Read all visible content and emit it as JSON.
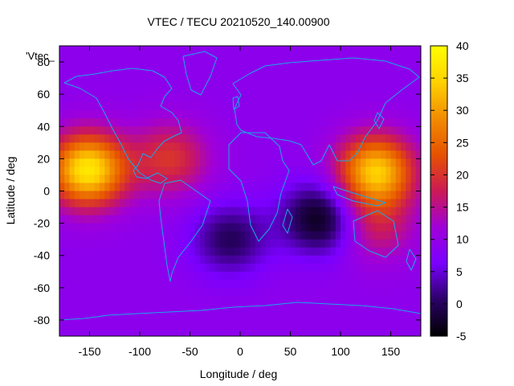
{
  "chart_data": {
    "type": "heatmap",
    "title": "VTEC / TECU 20210520_140.00900",
    "xlabel": "Longitude / deg",
    "ylabel": "Latitude / deg",
    "xlim": [
      -180,
      180
    ],
    "ylim": [
      -90,
      90
    ],
    "x_ticks": [
      -150,
      -100,
      -50,
      0,
      50,
      100,
      150
    ],
    "y_ticks": [
      -80,
      -60,
      -40,
      -20,
      0,
      20,
      40,
      60,
      80
    ],
    "colorbar": {
      "range": [
        -5,
        40
      ],
      "ticks": [
        -5,
        0,
        5,
        10,
        15,
        20,
        25,
        30,
        35,
        40
      ],
      "palette": [
        "#000000",
        "#2a0066",
        "#7a00ff",
        "#a000d8",
        "#cc1a55",
        "#e65200",
        "#f28c00",
        "#ffd200",
        "#ffff00"
      ]
    },
    "key_label": "'Vtec_",
    "overlay": "coastlines",
    "colors": {
      "coastline": "#1aa7e8",
      "frame": "#000000",
      "background_level": "#7a1cf0"
    },
    "features": [
      {
        "label": "",
        "lon": -152,
        "lat": 13,
        "value": 37
      },
      {
        "label": "",
        "lon": -70,
        "lat": 20,
        "value": 20
      },
      {
        "label": "",
        "lon": 135,
        "lat": 12,
        "value": 34
      },
      {
        "label": "",
        "lon": 135,
        "lat": -22,
        "value": 17
      },
      {
        "label": "",
        "lon": 80,
        "lat": -17,
        "value": -4
      },
      {
        "label": "",
        "lon": -10,
        "lat": -30,
        "value": 0
      }
    ]
  }
}
